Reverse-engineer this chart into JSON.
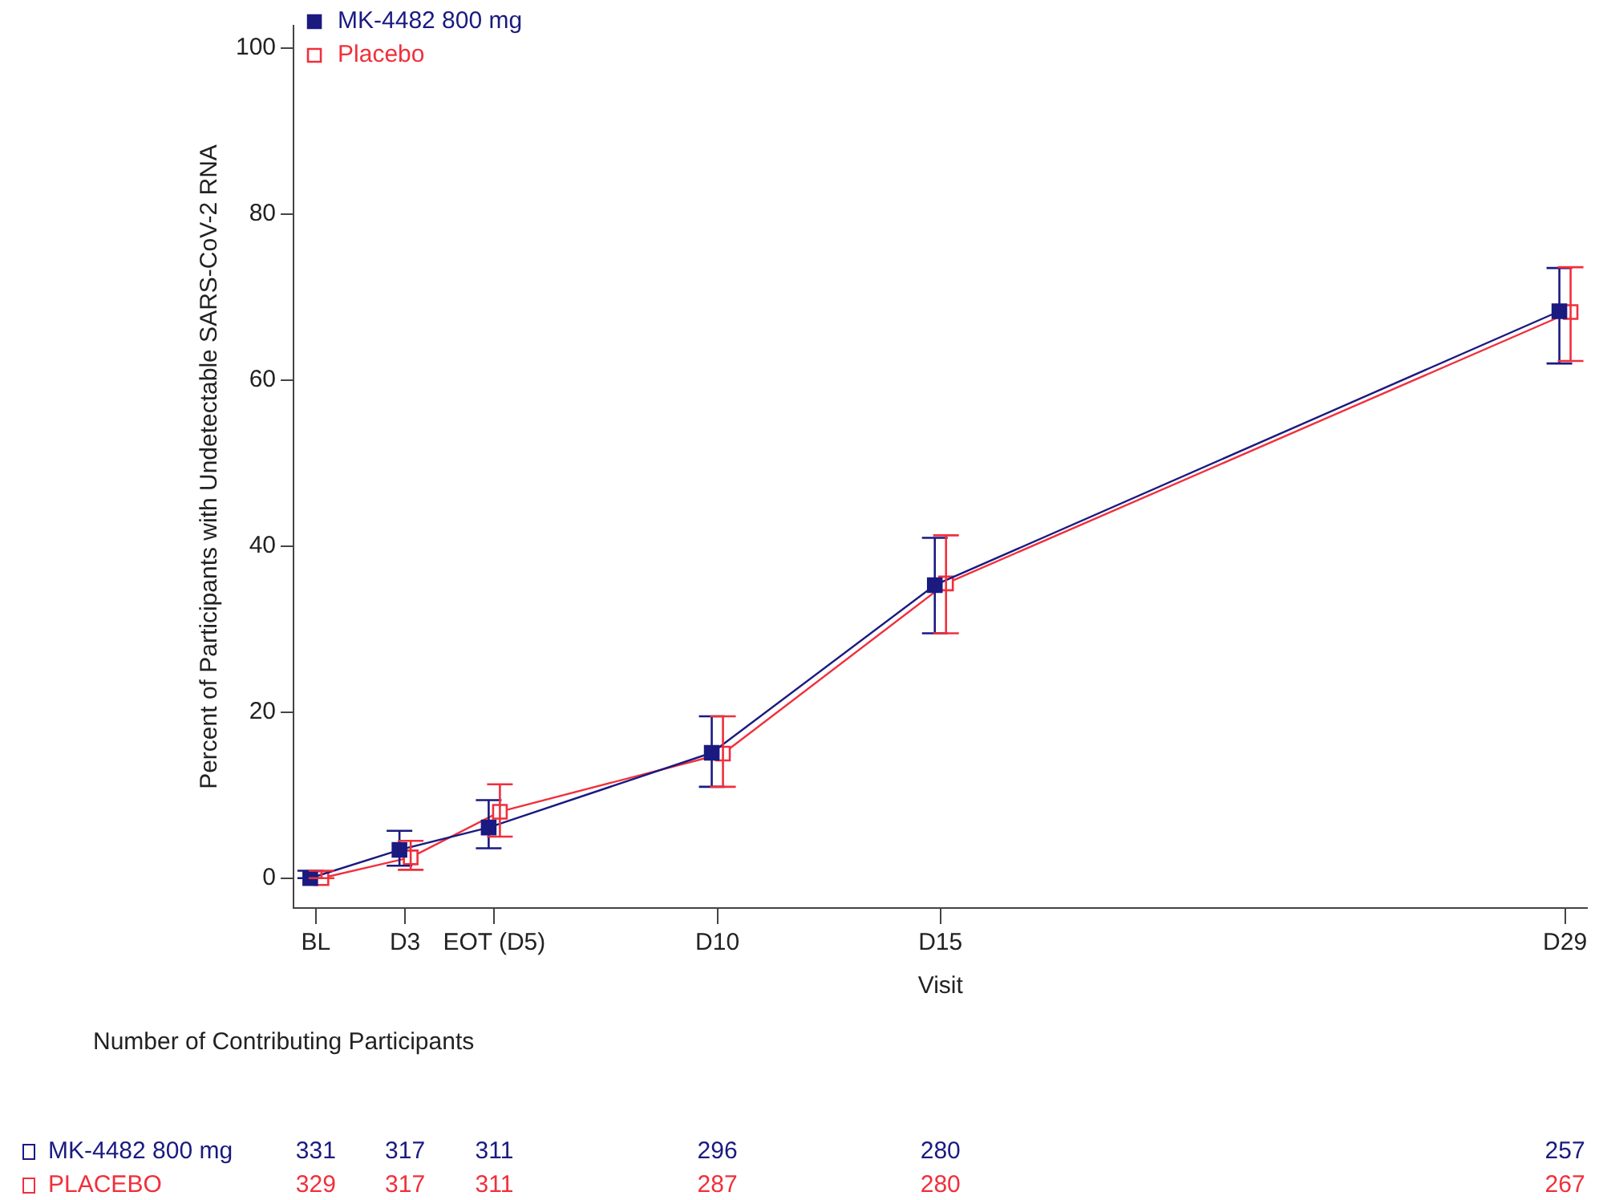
{
  "chart_data": {
    "type": "line",
    "xlabel": "Visit",
    "ylabel": "Percent of Participants with Undetectable SARS-CoV-2 RNA",
    "categories": [
      "BL",
      null,
      "D3",
      null,
      "EOT (D5)",
      null,
      null,
      null,
      null,
      "D10",
      null,
      null,
      null,
      null,
      "D15",
      null,
      null,
      null,
      null,
      null,
      null,
      null,
      null,
      null,
      null,
      null,
      null,
      null,
      "D29"
    ],
    "ylim": [
      -3.6,
      102.7
    ],
    "yticks": [
      0,
      20,
      40,
      60,
      80,
      100
    ],
    "grid": false,
    "legend": "top left",
    "marker": "square",
    "line_style": "solid",
    "series": [
      {
        "name": "MK-4482 800 mg",
        "color": "#1a1a80",
        "values": [
          0,
          null,
          3.4,
          null,
          6.1,
          null,
          null,
          null,
          null,
          15.1,
          null,
          null,
          null,
          null,
          35.3,
          null,
          null,
          null,
          null,
          null,
          null,
          null,
          null,
          null,
          null,
          null,
          null,
          null,
          68.3
        ],
        "errors": [
          [
            0,
            0.9
          ],
          null,
          [
            1.5,
            5.7
          ],
          null,
          [
            3.6,
            9.4
          ],
          null,
          null,
          null,
          null,
          [
            11,
            19.5
          ],
          null,
          null,
          null,
          null,
          [
            29.5,
            41
          ],
          null,
          null,
          null,
          null,
          null,
          null,
          null,
          null,
          null,
          null,
          null,
          null,
          null,
          [
            62,
            73.5
          ]
        ]
      },
      {
        "name": "Placebo",
        "color": "#f0303c",
        "values": [
          0,
          null,
          2.5,
          null,
          8,
          null,
          null,
          null,
          null,
          15,
          null,
          null,
          null,
          null,
          35.5,
          null,
          null,
          null,
          null,
          null,
          null,
          null,
          null,
          null,
          null,
          null,
          null,
          null,
          68.2
        ],
        "errors": [
          [
            0,
            0.9
          ],
          null,
          [
            1,
            4.5
          ],
          null,
          [
            5,
            11.3
          ],
          null,
          null,
          null,
          null,
          [
            11,
            19.5
          ],
          null,
          null,
          null,
          null,
          [
            29.5,
            41.3
          ],
          null,
          null,
          null,
          null,
          null,
          null,
          null,
          null,
          null,
          null,
          null,
          null,
          null,
          [
            62.3,
            73.6
          ]
        ]
      }
    ],
    "annotations": [
      "Number of Contributing Participants",
      "MK-4482 800 mg",
      "331",
      "317",
      "311",
      "296",
      "280",
      "257",
      "PLACEBO",
      "329",
      "317",
      "311",
      "287",
      "280",
      "267"
    ]
  }
}
